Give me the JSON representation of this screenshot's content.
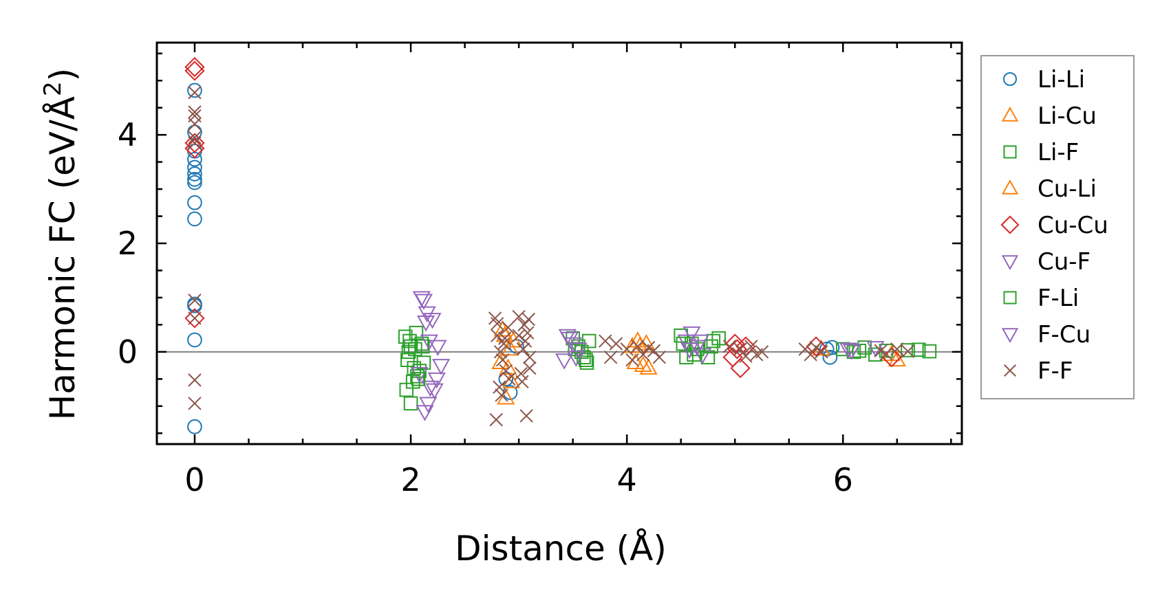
{
  "chart_data": {
    "type": "scatter",
    "xlabel": "Distance (Å)",
    "ylabel": "Harmonic FC (eV/Å²)",
    "ylabel_parts": {
      "main": "Harmonic FC (eV/Å",
      "sup": "2",
      "end": ")"
    },
    "xlim": [
      -0.35,
      7.1
    ],
    "ylim": [
      -1.7,
      5.7
    ],
    "xticks": [
      0,
      2,
      4,
      6
    ],
    "yticks": [
      0,
      2,
      4
    ],
    "x_minor_step": 0.5,
    "y_minor_step": 0.5,
    "grid": false,
    "reference_line_y": 0,
    "legend_position": "outside right",
    "series": [
      {
        "name": "Li-Li",
        "marker": "circle",
        "color": "#1f77b4",
        "x": [
          0,
          0,
          0,
          0,
          0,
          0,
          0,
          0,
          0,
          0,
          0,
          0,
          0,
          0,
          2.88,
          2.92,
          2.98,
          5.85,
          5.88,
          5.9
        ],
        "y": [
          4.82,
          4.05,
          3.7,
          3.55,
          3.4,
          3.28,
          3.18,
          3.12,
          2.75,
          2.45,
          0.88,
          0.85,
          0.22,
          -1.38,
          -0.5,
          -0.75,
          0.1,
          0.05,
          -0.1,
          0.08
        ]
      },
      {
        "name": "Li-Cu",
        "marker": "triangle-up",
        "color": "#ff7f0e",
        "x": [
          2.85,
          2.9,
          2.95,
          2.88,
          2.92,
          4.1,
          4.15,
          4.2,
          4.05,
          4.18,
          5.8,
          6.5
        ],
        "y": [
          0.4,
          -0.3,
          0.2,
          -0.85,
          0.05,
          0.2,
          -0.25,
          -0.3,
          0.1,
          0.15,
          0.05,
          -0.15
        ]
      },
      {
        "name": "Li-F",
        "marker": "square",
        "color": "#2ca02c",
        "x": [
          1.95,
          1.97,
          2.0,
          2.02,
          2.05,
          2.08,
          2.1,
          1.96,
          2.0,
          2.04,
          2.12,
          2.06,
          1.98,
          3.5,
          3.55,
          3.6,
          3.65,
          3.62,
          3.52,
          4.5,
          4.55,
          4.6,
          4.65,
          4.75,
          4.8,
          4.85,
          6.0,
          6.1,
          6.2,
          6.3,
          6.4,
          6.6,
          6.8
        ],
        "y": [
          0.28,
          -0.15,
          0.1,
          -0.55,
          0.35,
          -0.35,
          0.15,
          -0.7,
          -0.95,
          0.05,
          -0.2,
          -0.45,
          0.0,
          0.25,
          0.1,
          -0.1,
          0.2,
          -0.15,
          0.05,
          0.3,
          -0.1,
          0.15,
          0.05,
          -0.1,
          0.2,
          0.25,
          0.05,
          0.0,
          0.08,
          -0.05,
          0.02,
          0.03,
          0.01
        ]
      },
      {
        "name": "Cu-Li",
        "marker": "triangle-up",
        "color": "#ff7f0e",
        "x": [
          2.83,
          2.87,
          2.93,
          4.12,
          4.08,
          6.45
        ],
        "y": [
          -0.2,
          0.3,
          -0.55,
          0.1,
          -0.2,
          -0.05
        ]
      },
      {
        "name": "Cu-Cu",
        "marker": "diamond",
        "color": "#d62728",
        "x": [
          0,
          0,
          0,
          0,
          0,
          5.0,
          5.05,
          5.02,
          4.98,
          5.1,
          5.75,
          6.45
        ],
        "y": [
          5.25,
          5.18,
          3.85,
          3.75,
          0.62,
          0.15,
          -0.3,
          0.05,
          -0.1,
          0.1,
          0.1,
          -0.1
        ]
      },
      {
        "name": "Cu-F",
        "marker": "triangle-down",
        "color": "#9467bd",
        "x": [
          2.1,
          2.12,
          2.15,
          2.2,
          2.25,
          2.28,
          2.18,
          2.13,
          2.16,
          2.22,
          2.08,
          3.45,
          3.5,
          3.42,
          3.55,
          4.6,
          4.65,
          4.7,
          4.55,
          6.05,
          6.3
        ],
        "y": [
          1.0,
          0.95,
          0.72,
          0.6,
          0.1,
          -0.25,
          -0.65,
          -1.1,
          -0.95,
          -0.7,
          -0.4,
          0.3,
          0.15,
          -0.15,
          0.05,
          0.35,
          0.1,
          -0.05,
          0.2,
          0.05,
          0.08
        ]
      },
      {
        "name": "F-Li",
        "marker": "square",
        "color": "#2ca02c",
        "x": [
          1.99,
          2.03,
          2.07,
          2.11,
          3.58,
          3.63,
          4.52,
          4.62,
          4.78,
          6.15,
          6.7
        ],
        "y": [
          0.2,
          -0.3,
          -0.5,
          0.1,
          0.0,
          -0.2,
          0.15,
          -0.05,
          0.1,
          0.02,
          0.04
        ]
      },
      {
        "name": "F-Cu",
        "marker": "triangle-down",
        "color": "#9467bd",
        "x": [
          2.14,
          2.24,
          2.17,
          3.47,
          3.53,
          4.58,
          4.68,
          6.08
        ],
        "y": [
          0.55,
          -0.5,
          0.2,
          0.25,
          -0.1,
          0.05,
          0.2,
          0.03
        ]
      },
      {
        "name": "F-F",
        "marker": "x",
        "color": "#8c564b",
        "x": [
          0,
          0,
          0,
          0,
          0,
          0,
          0,
          0,
          0,
          0,
          2.78,
          2.8,
          2.82,
          2.84,
          2.86,
          2.88,
          2.9,
          2.79,
          2.83,
          2.87,
          2.91,
          2.8,
          2.85,
          3.0,
          3.05,
          3.08,
          3.1,
          3.02,
          3.06,
          3.03,
          3.09,
          3.07,
          3.04,
          3.0,
          3.1,
          3.8,
          3.85,
          3.9,
          4.0,
          4.05,
          4.1,
          4.15,
          4.2,
          4.25,
          4.3,
          4.95,
          5.05,
          5.1,
          5.15,
          5.2,
          5.25,
          5.65,
          5.7,
          5.75,
          5.8,
          6.35,
          6.4,
          6.5,
          6.6
        ],
        "y": [
          4.78,
          4.42,
          4.35,
          4.2,
          3.95,
          3.85,
          0.95,
          0.62,
          -0.52,
          -0.95,
          0.62,
          0.3,
          -0.65,
          -0.8,
          0.15,
          -0.35,
          0.45,
          -1.25,
          0.0,
          0.25,
          -0.5,
          0.52,
          -0.15,
          0.65,
          0.5,
          0.35,
          -0.1,
          -0.4,
          0.2,
          -0.55,
          0.6,
          -1.18,
          0.05,
          0.3,
          -0.3,
          0.2,
          -0.1,
          0.15,
          0.05,
          -0.15,
          0.1,
          -0.05,
          0.08,
          0.02,
          -0.1,
          0.1,
          0.05,
          -0.08,
          0.1,
          -0.05,
          0.0,
          0.05,
          -0.05,
          0.08,
          0.0,
          0.02,
          -0.04,
          0.05,
          0.01
        ]
      }
    ]
  }
}
